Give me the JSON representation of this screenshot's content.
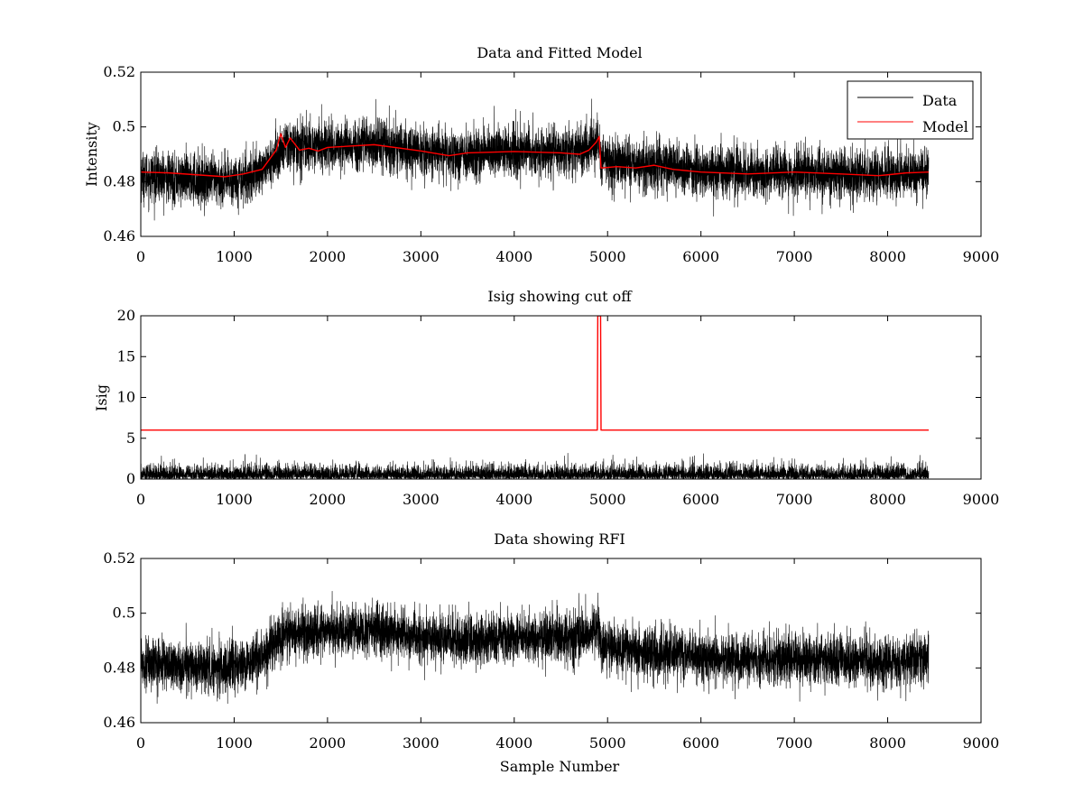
{
  "chart_data": [
    {
      "type": "line",
      "title": "Data and Fitted Model",
      "xlabel": "",
      "ylabel": "Intensity",
      "xlim": [
        0,
        9000
      ],
      "ylim": [
        0.46,
        0.52
      ],
      "xticks": [
        0,
        1000,
        2000,
        3000,
        4000,
        5000,
        6000,
        7000,
        8000,
        9000
      ],
      "yticks": [
        0.46,
        0.48,
        0.5,
        0.52
      ],
      "xtick_labels": [
        "0",
        "1000",
        "2000",
        "3000",
        "4000",
        "5000",
        "6000",
        "7000",
        "8000",
        "9000"
      ],
      "ytick_labels": [
        "0.46",
        "0.48",
        "0.5",
        "0.52"
      ],
      "grid": false,
      "legend": {
        "placement": "top-right",
        "entries": [
          "Data",
          "Model"
        ]
      },
      "series": [
        {
          "name": "Data",
          "color": "#000000",
          "kind": "noisy",
          "n_points": 8440,
          "noise_sd": 0.0045,
          "baseline": [
            [
              0,
              0.482
            ],
            [
              400,
              0.481
            ],
            [
              900,
              0.48
            ],
            [
              1200,
              0.482
            ],
            [
              1400,
              0.487
            ],
            [
              1550,
              0.493
            ],
            [
              2000,
              0.493
            ],
            [
              2500,
              0.494
            ],
            [
              3000,
              0.491
            ],
            [
              3500,
              0.49
            ],
            [
              4000,
              0.491
            ],
            [
              4500,
              0.491
            ],
            [
              4800,
              0.492
            ],
            [
              4900,
              0.495
            ],
            [
              4930,
              0.488
            ],
            [
              5500,
              0.486
            ],
            [
              6000,
              0.484
            ],
            [
              6500,
              0.483
            ],
            [
              7000,
              0.483
            ],
            [
              7500,
              0.483
            ],
            [
              8000,
              0.482
            ],
            [
              8440,
              0.484
            ]
          ]
        },
        {
          "name": "Model",
          "color": "#ff0000",
          "kind": "line",
          "points": [
            [
              0,
              0.4835
            ],
            [
              300,
              0.4832
            ],
            [
              600,
              0.4825
            ],
            [
              900,
              0.4818
            ],
            [
              1100,
              0.4828
            ],
            [
              1300,
              0.4845
            ],
            [
              1450,
              0.4915
            ],
            [
              1500,
              0.4975
            ],
            [
              1550,
              0.4925
            ],
            [
              1600,
              0.496
            ],
            [
              1700,
              0.4915
            ],
            [
              1800,
              0.4922
            ],
            [
              1900,
              0.4912
            ],
            [
              2000,
              0.4925
            ],
            [
              2500,
              0.4935
            ],
            [
              3000,
              0.4912
            ],
            [
              3300,
              0.4895
            ],
            [
              3500,
              0.4905
            ],
            [
              4000,
              0.491
            ],
            [
              4500,
              0.4905
            ],
            [
              4700,
              0.49
            ],
            [
              4800,
              0.4915
            ],
            [
              4880,
              0.4945
            ],
            [
              4910,
              0.4965
            ],
            [
              4930,
              0.485
            ],
            [
              5100,
              0.4855
            ],
            [
              5300,
              0.485
            ],
            [
              5500,
              0.486
            ],
            [
              5700,
              0.4845
            ],
            [
              6000,
              0.4835
            ],
            [
              6500,
              0.4828
            ],
            [
              7000,
              0.4835
            ],
            [
              7500,
              0.4828
            ],
            [
              7900,
              0.4822
            ],
            [
              8000,
              0.4825
            ],
            [
              8200,
              0.4832
            ],
            [
              8440,
              0.4835
            ]
          ]
        }
      ]
    },
    {
      "type": "line",
      "title": "Isig showing cut off",
      "xlabel": "",
      "ylabel": "Isig",
      "xlim": [
        0,
        9000
      ],
      "ylim": [
        0,
        20
      ],
      "xticks": [
        0,
        1000,
        2000,
        3000,
        4000,
        5000,
        6000,
        7000,
        8000,
        9000
      ],
      "yticks": [
        0,
        5,
        10,
        15,
        20
      ],
      "xtick_labels": [
        "0",
        "1000",
        "2000",
        "3000",
        "4000",
        "5000",
        "6000",
        "7000",
        "8000",
        "9000"
      ],
      "ytick_labels": [
        "0",
        "5",
        "10",
        "15",
        "20"
      ],
      "grid": false,
      "series": [
        {
          "color": "#000000",
          "kind": "abs-noise",
          "n_points": 8440,
          "noise_sd": 0.8,
          "max": 3.6
        },
        {
          "color": "#ff0000",
          "kind": "line",
          "points": [
            [
              0,
              6
            ],
            [
              4890,
              6
            ],
            [
              4895,
              20
            ],
            [
              4925,
              20
            ],
            [
              4930,
              6
            ],
            [
              8440,
              6
            ]
          ]
        }
      ]
    },
    {
      "type": "line",
      "title": "Data showing RFI",
      "xlabel": "Sample Number",
      "ylabel": "",
      "xlim": [
        0,
        9000
      ],
      "ylim": [
        0.46,
        0.52
      ],
      "xticks": [
        0,
        1000,
        2000,
        3000,
        4000,
        5000,
        6000,
        7000,
        8000,
        9000
      ],
      "yticks": [
        0.46,
        0.48,
        0.5,
        0.52
      ],
      "xtick_labels": [
        "0",
        "1000",
        "2000",
        "3000",
        "4000",
        "5000",
        "6000",
        "7000",
        "8000",
        "9000"
      ],
      "ytick_labels": [
        "0.46",
        "0.48",
        "0.5",
        "0.52"
      ],
      "grid": false,
      "series": [
        {
          "color": "#000000",
          "kind": "noisy",
          "n_points": 8440,
          "noise_sd": 0.0045,
          "baseline": [
            [
              0,
              0.482
            ],
            [
              400,
              0.481
            ],
            [
              900,
              0.48
            ],
            [
              1200,
              0.482
            ],
            [
              1400,
              0.487
            ],
            [
              1550,
              0.493
            ],
            [
              2000,
              0.493
            ],
            [
              2500,
              0.494
            ],
            [
              3000,
              0.491
            ],
            [
              3500,
              0.49
            ],
            [
              4000,
              0.491
            ],
            [
              4500,
              0.491
            ],
            [
              4800,
              0.492
            ],
            [
              4900,
              0.495
            ],
            [
              4930,
              0.488
            ],
            [
              5500,
              0.486
            ],
            [
              6000,
              0.484
            ],
            [
              6500,
              0.483
            ],
            [
              7000,
              0.483
            ],
            [
              7500,
              0.483
            ],
            [
              8000,
              0.482
            ],
            [
              8440,
              0.484
            ]
          ]
        }
      ]
    }
  ]
}
